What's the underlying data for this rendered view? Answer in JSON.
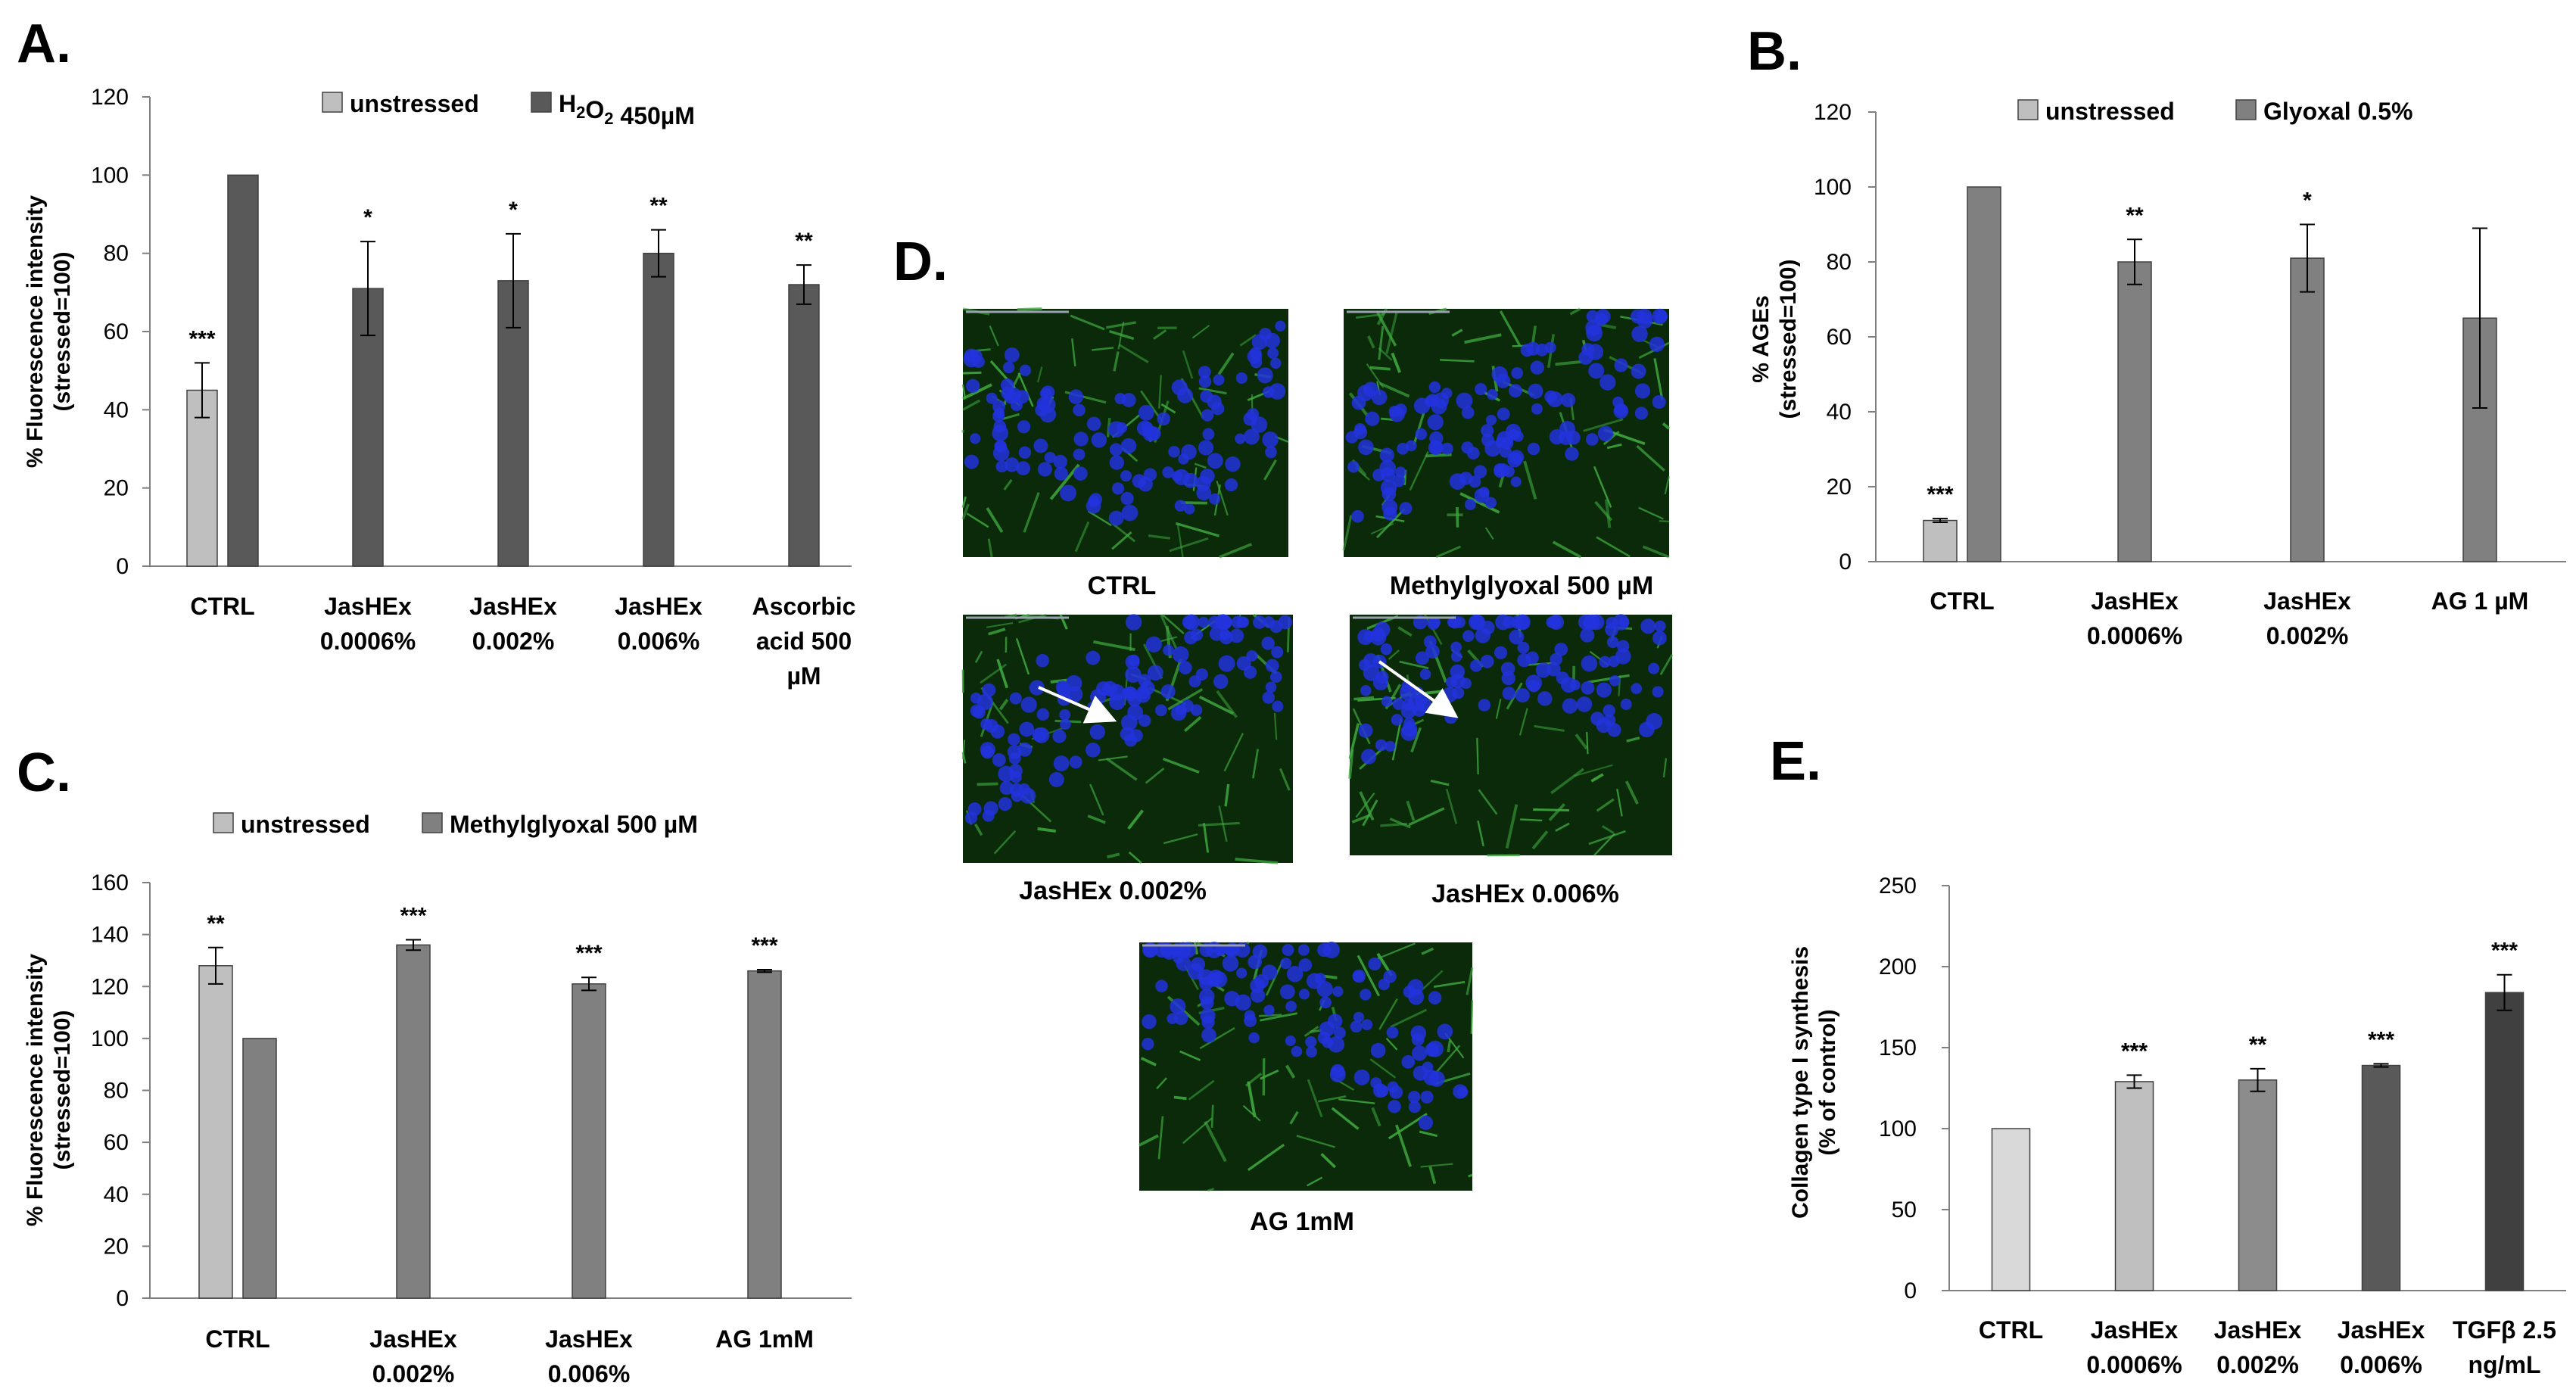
{
  "panels": {
    "A": "A.",
    "B": "B.",
    "C": "C.",
    "D": "D.",
    "E": "E."
  },
  "colors": {
    "unstressed": "#bfbfbf",
    "stressed_dark": "#595959",
    "stressed_mid": "#808080",
    "e_light": "#d9d9d9",
    "e_mid1": "#bfbfbf",
    "e_mid2": "#8c8c8c",
    "e_dark1": "#595959",
    "e_dark2": "#404040",
    "micro_bg": "#0a2a0a",
    "nuclei": "#2233dd",
    "fibers": "#3faa3f"
  },
  "chart_data": [
    {
      "id": "A",
      "type": "bar",
      "ylabel": "% Fluorescence intensity (stressed=100)",
      "ylim": [
        0,
        120
      ],
      "yticks": [
        0,
        20,
        40,
        60,
        80,
        100,
        120
      ],
      "categories": [
        "CTRL",
        "JasHEx 0.0006%",
        "JasHEx 0.002%",
        "JasHEx 0.006%",
        "Ascorbic acid 500 µM"
      ],
      "category_lines": [
        [
          "CTRL"
        ],
        [
          "JasHEx",
          "0.0006%"
        ],
        [
          "JasHEx",
          "0.002%"
        ],
        [
          "JasHEx",
          "0.006%"
        ],
        [
          "Ascorbic",
          "acid 500",
          "µM"
        ]
      ],
      "series": [
        {
          "name": "unstressed",
          "values": [
            45,
            null,
            null,
            null,
            null
          ],
          "errors": [
            7,
            null,
            null,
            null,
            null
          ],
          "sig": [
            "***",
            null,
            null,
            null,
            null
          ]
        },
        {
          "name": "H₂O₂ 450µM",
          "values": [
            100,
            71,
            73,
            80,
            72
          ],
          "errors": [
            0,
            12,
            12,
            6,
            5
          ],
          "sig": [
            null,
            "*",
            "*",
            "**",
            "**"
          ]
        }
      ],
      "legend": "top"
    },
    {
      "id": "B",
      "type": "bar",
      "ylabel": "% AGEs (stressed=100)",
      "ylim": [
        0,
        120
      ],
      "yticks": [
        0,
        20,
        40,
        60,
        80,
        100,
        120
      ],
      "categories": [
        "CTRL",
        "JasHEx 0.0006%",
        "JasHEx 0.002%",
        "AG 1 µM"
      ],
      "category_lines": [
        [
          "CTRL"
        ],
        [
          "JasHEx",
          "0.0006%"
        ],
        [
          "JasHEx",
          "0.002%"
        ],
        [
          "AG 1 µM"
        ]
      ],
      "series": [
        {
          "name": "unstressed",
          "values": [
            11,
            null,
            null,
            null
          ],
          "errors": [
            0.5,
            null,
            null,
            null
          ],
          "sig": [
            "***",
            null,
            null,
            null
          ]
        },
        {
          "name": "Glyoxal 0.5%",
          "values": [
            100,
            80,
            81,
            65
          ],
          "errors": [
            0,
            6,
            9,
            24
          ],
          "sig": [
            null,
            "**",
            "*",
            null
          ]
        }
      ],
      "legend": "top"
    },
    {
      "id": "C",
      "type": "bar",
      "ylabel": "% Fluorescence intensity (stressed=100)",
      "ylim": [
        0,
        160
      ],
      "yticks": [
        0,
        20,
        40,
        60,
        80,
        100,
        120,
        140,
        160
      ],
      "categories": [
        "CTRL",
        "JasHEx 0.002%",
        "JasHEx 0.006%",
        "AG 1mM"
      ],
      "category_lines": [
        [
          "CTRL"
        ],
        [
          "JasHEx",
          "0.002%"
        ],
        [
          "JasHEx",
          "0.006%"
        ],
        [
          "AG 1mM"
        ]
      ],
      "series": [
        {
          "name": "unstressed",
          "values": [
            128,
            null,
            null,
            null
          ],
          "errors": [
            7,
            null,
            null,
            null
          ],
          "sig": [
            "**",
            null,
            null,
            null
          ]
        },
        {
          "name": "Methylglyoxal 500 µM",
          "values": [
            100,
            136,
            121,
            126
          ],
          "errors": [
            0,
            2,
            2.5,
            0.5
          ],
          "sig": [
            null,
            "***",
            "***",
            "***"
          ]
        }
      ],
      "legend": "top"
    },
    {
      "id": "E",
      "type": "bar",
      "ylabel": "Collagen type I synthesis (% of control)",
      "ylim": [
        0,
        250
      ],
      "yticks": [
        0,
        50,
        100,
        150,
        200,
        250
      ],
      "categories": [
        "CTRL",
        "JasHEx 0.0006%",
        "JasHEx 0.002%",
        "JasHEx 0.006%",
        "TGFβ 2.5 ng/mL"
      ],
      "category_lines": [
        [
          "CTRL"
        ],
        [
          "JasHEx",
          "0.0006%"
        ],
        [
          "JasHEx",
          "0.002%"
        ],
        [
          "JasHEx",
          "0.006%"
        ],
        [
          "TGFβ 2.5",
          "ng/mL"
        ]
      ],
      "values": [
        100,
        129,
        130,
        139,
        184
      ],
      "errors": [
        0,
        4,
        7,
        1,
        11
      ],
      "sig": [
        null,
        "***",
        "**",
        "***",
        "***"
      ]
    }
  ],
  "micrographs": {
    "captions": [
      "CTRL",
      "Methylglyoxal 500 µM",
      "JasHEx 0.002%",
      "JasHEx 0.006%",
      "AG 1mM"
    ]
  }
}
